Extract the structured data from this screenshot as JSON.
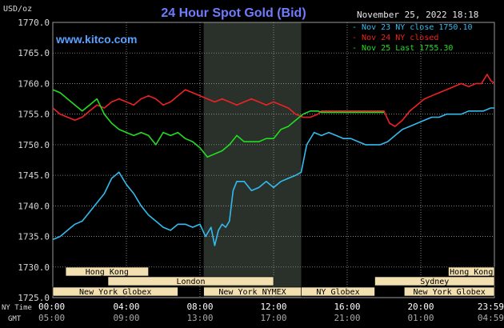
{
  "header": {
    "title": "24 Hour Spot Gold (Bid)",
    "unit": "USD/oz",
    "site": "www.kitco.com",
    "date": "November 25, 2022 18:18"
  },
  "colors": {
    "background": "#000000",
    "grid": "#9a9a9a",
    "title": "#6f7cff",
    "site": "#5aa0ff",
    "text": "#d8d8d8",
    "nov23": "#33bbee",
    "nov24": "#ee2222",
    "nov25": "#22dd22",
    "session_shade": "#2a312a",
    "market_box_fill": "#f2e0b0",
    "market_box_text": "#000000"
  },
  "markets": [
    {
      "label": "Hong Kong",
      "start": 0.7,
      "end": 5.2,
      "row": 0
    },
    {
      "label": "Hong Kong",
      "start": 21.5,
      "end": 24.0,
      "row": 0
    },
    {
      "label": "London",
      "start": 3.0,
      "end": 12.0,
      "row": 1
    },
    {
      "label": "Sydney",
      "start": 17.5,
      "end": 24.0,
      "row": 1
    },
    {
      "label": "New York Globex",
      "start": 0.0,
      "end": 6.8,
      "row": 2
    },
    {
      "label": "New York NYMEX",
      "start": 8.2,
      "end": 13.5,
      "row": 2
    },
    {
      "label": "NY Globex",
      "start": 13.5,
      "end": 17.5,
      "row": 2
    },
    {
      "label": "New York Globex",
      "start": 19.1,
      "end": 24.0,
      "row": 2
    }
  ],
  "chart_data": {
    "type": "line",
    "title": "24 Hour Spot Gold (Bid)",
    "ylabel": "USD/oz",
    "xlim": [
      0,
      24
    ],
    "ylim": [
      1725,
      1770
    ],
    "yticks": [
      "1770.0",
      "1765.0",
      "1760.0",
      "1755.0",
      "1750.0",
      "1745.0",
      "1740.0",
      "1735.0",
      "1730.0",
      "1725.0"
    ],
    "ytick_values": [
      1770,
      1765,
      1760,
      1755,
      1750,
      1745,
      1740,
      1735,
      1730,
      1725
    ],
    "xticks": [
      {
        "x": 0,
        "ny": "00:00",
        "gmt": "05:00"
      },
      {
        "x": 4,
        "ny": "04:00",
        "gmt": "09:00"
      },
      {
        "x": 8,
        "ny": "08:00",
        "gmt": "13:00"
      },
      {
        "x": 12,
        "ny": "12:00",
        "gmt": "17:00"
      },
      {
        "x": 16,
        "ny": "16:00",
        "gmt": "21:00"
      },
      {
        "x": 20,
        "ny": "20:00",
        "gmt": "01:00"
      },
      {
        "x": 24,
        "ny": "23:59",
        "gmt": "04:59"
      }
    ],
    "xrow_labels": {
      "ny": "NY Time",
      "gmt": "GMT"
    },
    "grid": true,
    "shaded_range": [
      8.2,
      13.5
    ],
    "legend_position": "top-right",
    "series": [
      {
        "name": "Nov 23 NY close 1750.10",
        "color_key": "nov23",
        "x": [
          0,
          0.4,
          0.8,
          1.2,
          1.6,
          2.0,
          2.4,
          2.8,
          3.2,
          3.6,
          4.0,
          4.4,
          4.8,
          5.2,
          5.6,
          6.0,
          6.4,
          6.8,
          7.2,
          7.6,
          8.0,
          8.3,
          8.6,
          8.8,
          9.0,
          9.2,
          9.4,
          9.6,
          9.8,
          10.0,
          10.4,
          10.8,
          11.2,
          11.6,
          12.0,
          12.4,
          12.8,
          13.2,
          13.5,
          13.8,
          14.2,
          14.6,
          15.0,
          15.4,
          15.8,
          16.2,
          16.6,
          17.0,
          17.4,
          17.8,
          18.2,
          18.6,
          19.0,
          19.4,
          19.8,
          20.2,
          20.6,
          21.0,
          21.4,
          21.8,
          22.2,
          22.6,
          23.0,
          23.4,
          23.8,
          24.0
        ],
        "y": [
          1734.5,
          1735.0,
          1736.0,
          1737.0,
          1737.5,
          1739.0,
          1740.5,
          1742.0,
          1744.5,
          1745.5,
          1743.5,
          1742.0,
          1740.0,
          1738.5,
          1737.5,
          1736.5,
          1736.0,
          1737.0,
          1737.0,
          1736.5,
          1737.0,
          1735.0,
          1736.5,
          1733.5,
          1736.0,
          1737.0,
          1736.5,
          1737.5,
          1742.5,
          1744.0,
          1744.0,
          1742.5,
          1743.0,
          1744.0,
          1743.0,
          1744.0,
          1744.5,
          1745.0,
          1745.5,
          1750.0,
          1752.0,
          1751.5,
          1752.0,
          1751.5,
          1751.0,
          1751.0,
          1750.5,
          1750.0,
          1750.0,
          1750.0,
          1750.5,
          1751.5,
          1752.5,
          1753.0,
          1753.5,
          1754.0,
          1754.5,
          1754.5,
          1755.0,
          1755.0,
          1755.0,
          1755.5,
          1755.5,
          1755.5,
          1756.0,
          1756.0
        ]
      },
      {
        "name": "Nov 24 NY closed",
        "color_key": "nov24",
        "x": [
          0,
          0.4,
          0.8,
          1.2,
          1.6,
          2.0,
          2.4,
          2.8,
          3.2,
          3.6,
          4.0,
          4.4,
          4.8,
          5.2,
          5.6,
          6.0,
          6.4,
          6.8,
          7.2,
          7.6,
          8.0,
          8.4,
          8.8,
          9.2,
          9.6,
          10.0,
          10.4,
          10.8,
          11.2,
          11.6,
          12.0,
          12.4,
          12.8,
          13.2,
          13.6,
          14.0,
          14.4,
          14.6,
          18.0,
          18.3,
          18.6,
          19.0,
          19.4,
          19.8,
          20.2,
          20.6,
          21.0,
          21.4,
          21.8,
          22.2,
          22.6,
          23.0,
          23.3,
          23.6,
          23.8,
          24.0
        ],
        "y": [
          1756.0,
          1755.0,
          1754.5,
          1754.0,
          1754.5,
          1755.5,
          1756.5,
          1756.0,
          1757.0,
          1757.5,
          1757.0,
          1756.5,
          1757.5,
          1758.0,
          1757.5,
          1756.5,
          1757.0,
          1758.0,
          1759.0,
          1758.5,
          1758.0,
          1757.5,
          1757.0,
          1757.5,
          1757.0,
          1756.5,
          1757.0,
          1757.5,
          1757.0,
          1756.5,
          1757.0,
          1756.5,
          1756.0,
          1755.0,
          1754.5,
          1754.5,
          1755.0,
          1755.5,
          1755.5,
          1753.5,
          1753.0,
          1754.0,
          1755.5,
          1756.5,
          1757.5,
          1758.0,
          1758.5,
          1759.0,
          1759.5,
          1760.0,
          1759.5,
          1760.0,
          1760.0,
          1761.5,
          1760.5,
          1760.0
        ]
      },
      {
        "name": "Nov 25 Last 1755.30",
        "color_key": "nov25",
        "x": [
          0,
          0.4,
          0.8,
          1.2,
          1.6,
          2.0,
          2.4,
          2.8,
          3.2,
          3.6,
          4.0,
          4.4,
          4.8,
          5.2,
          5.6,
          6.0,
          6.4,
          6.8,
          7.2,
          7.6,
          8.0,
          8.4,
          8.8,
          9.2,
          9.6,
          10.0,
          10.4,
          10.8,
          11.2,
          11.6,
          12.0,
          12.4,
          12.8,
          13.2,
          13.6,
          14.0,
          14.4,
          14.6,
          18.0
        ],
        "y": [
          1759.0,
          1758.5,
          1757.5,
          1756.5,
          1755.5,
          1756.5,
          1757.5,
          1755.0,
          1753.5,
          1752.5,
          1752.0,
          1751.5,
          1752.0,
          1751.5,
          1750.0,
          1752.0,
          1751.5,
          1752.0,
          1751.0,
          1750.5,
          1749.5,
          1748.0,
          1748.5,
          1749.0,
          1750.0,
          1751.5,
          1750.5,
          1750.5,
          1750.5,
          1751.0,
          1751.0,
          1752.5,
          1753.0,
          1754.0,
          1755.0,
          1755.5,
          1755.5,
          1755.3,
          1755.3
        ]
      }
    ]
  }
}
